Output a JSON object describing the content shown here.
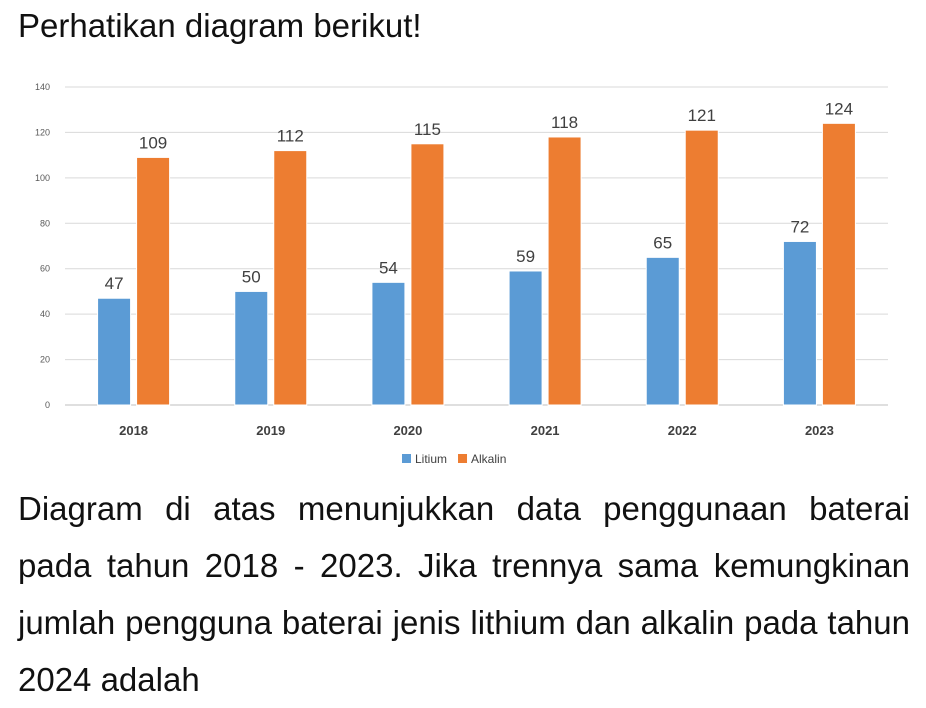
{
  "heading": "Perhatikan diagram berikut!",
  "chart_data": {
    "type": "bar",
    "categories": [
      "2018",
      "2019",
      "2020",
      "2021",
      "2022",
      "2023"
    ],
    "series": [
      {
        "name": "Litium",
        "values": [
          47,
          50,
          54,
          59,
          65,
          72
        ],
        "color": "#5b9bd5"
      },
      {
        "name": "Alkalin",
        "values": [
          109,
          112,
          115,
          118,
          121,
          124
        ],
        "color": "#ed7d31"
      }
    ],
    "ylim": [
      0,
      140
    ],
    "yticks": [
      0,
      20,
      40,
      60,
      80,
      100,
      120,
      140
    ],
    "grid": true,
    "legend": "bottom",
    "title": "",
    "xlabel": "",
    "ylabel": ""
  },
  "question": "Diagram di atas menunjukkan data penggunaan baterai pada tahun 2018 - 2023. Jika trennya sama kemungkinan jumlah pengguna baterai jenis lithium dan alkalin pada tahun 2024 adalah"
}
